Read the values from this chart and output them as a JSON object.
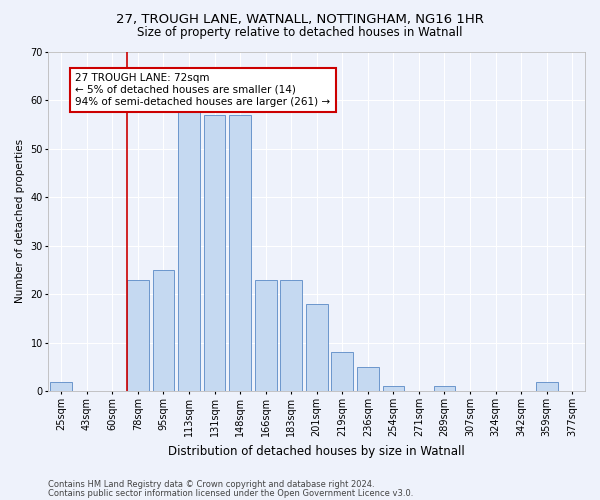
{
  "title1": "27, TROUGH LANE, WATNALL, NOTTINGHAM, NG16 1HR",
  "title2": "Size of property relative to detached houses in Watnall",
  "xlabel": "Distribution of detached houses by size in Watnall",
  "ylabel": "Number of detached properties",
  "categories": [
    "25sqm",
    "43sqm",
    "60sqm",
    "78sqm",
    "95sqm",
    "113sqm",
    "131sqm",
    "148sqm",
    "166sqm",
    "183sqm",
    "201sqm",
    "219sqm",
    "236sqm",
    "254sqm",
    "271sqm",
    "289sqm",
    "307sqm",
    "324sqm",
    "342sqm",
    "359sqm",
    "377sqm"
  ],
  "values": [
    2,
    0,
    0,
    23,
    25,
    59,
    57,
    57,
    23,
    23,
    18,
    8,
    5,
    1,
    0,
    1,
    0,
    0,
    0,
    2,
    0
  ],
  "bar_color": "#c5d9f1",
  "bar_edge_color": "#5a8ac6",
  "vline_x_index": 3,
  "vline_color": "#cc0000",
  "annotation_text": "27 TROUGH LANE: 72sqm\n← 5% of detached houses are smaller (14)\n94% of semi-detached houses are larger (261) →",
  "annotation_box_color": "#ffffff",
  "annotation_box_edge": "#cc0000",
  "ylim": [
    0,
    70
  ],
  "yticks": [
    0,
    10,
    20,
    30,
    40,
    50,
    60,
    70
  ],
  "footer1": "Contains HM Land Registry data © Crown copyright and database right 2024.",
  "footer2": "Contains public sector information licensed under the Open Government Licence v3.0.",
  "bg_color": "#eef2fb",
  "grid_color": "#ffffff",
  "title1_fontsize": 9.5,
  "title2_fontsize": 8.5,
  "xlabel_fontsize": 8.5,
  "ylabel_fontsize": 7.5,
  "tick_fontsize": 7,
  "footer_fontsize": 6,
  "ann_fontsize": 7.5
}
